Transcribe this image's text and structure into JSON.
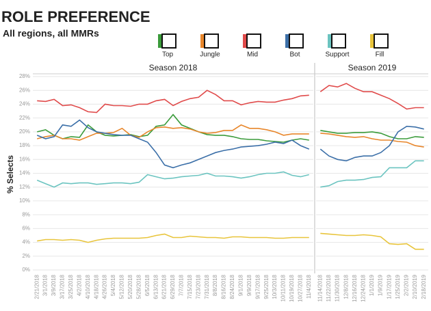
{
  "title": "ROLE PREFERENCE",
  "subtitle": "All regions, all MMRs",
  "ylabel": "% Selects",
  "chart_data": [
    {
      "type": "line",
      "title": "Season 2018",
      "categories": [
        "2/21/2018",
        "3/1/2018",
        "3/9/2018",
        "3/17/2018",
        "3/25/2018",
        "4/2/2018",
        "4/10/2018",
        "4/18/2018",
        "4/26/2018",
        "5/4/2018",
        "5/12/2018",
        "5/20/2018",
        "5/28/2018",
        "6/5/2018",
        "6/13/2018",
        "6/21/2018",
        "6/29/2018",
        "7/7/2018",
        "7/15/2018",
        "7/23/2018",
        "7/31/2018",
        "8/8/2018",
        "8/16/2018",
        "8/24/2018",
        "9/1/2018",
        "9/9/2018",
        "9/17/2018",
        "9/25/2018",
        "10/3/2018",
        "10/11/2018",
        "10/19/2018",
        "10/27/2018",
        "11/4/2018"
      ],
      "ylim": [
        0,
        28
      ],
      "yticks": [
        {
          "value": 0,
          "label": "0%"
        },
        {
          "value": 2,
          "label": "2%"
        },
        {
          "value": 4,
          "label": "4%"
        },
        {
          "value": 6,
          "label": "6%"
        },
        {
          "value": 8,
          "label": "8%"
        },
        {
          "value": 10,
          "label": "10%"
        },
        {
          "value": 12,
          "label": "12%"
        },
        {
          "value": 14,
          "label": "14%"
        },
        {
          "value": 16,
          "label": "16%"
        },
        {
          "value": 18,
          "label": "18%"
        },
        {
          "value": 20,
          "label": "20%"
        },
        {
          "value": 22,
          "label": "22%"
        },
        {
          "value": 24,
          "label": "24%"
        },
        {
          "value": 26,
          "label": "26%"
        },
        {
          "value": 28,
          "label": "28%"
        }
      ],
      "grid": true,
      "series": [
        {
          "name": "Top",
          "color": "#3a9b3a",
          "values": [
            20,
            20.3,
            19.5,
            19,
            19.3,
            19.2,
            21,
            20,
            19.5,
            19.4,
            19.5,
            19.6,
            19.3,
            19.5,
            20.8,
            21,
            22.5,
            21,
            20.5,
            20,
            19.6,
            19.5,
            19.5,
            19.3,
            19,
            18.9,
            18.9,
            18.7,
            18.6,
            18.5,
            18.8,
            19,
            18.8
          ]
        },
        {
          "name": "Jungle",
          "color": "#e8862a",
          "values": [
            19,
            19.3,
            19.5,
            19,
            19,
            18.8,
            19.3,
            19.8,
            19.8,
            19.9,
            20.5,
            19.5,
            19.2,
            20,
            20.6,
            20.7,
            20.5,
            20.6,
            20.4,
            20,
            19.8,
            19.9,
            20.2,
            20.2,
            21,
            20.5,
            20.5,
            20.3,
            20,
            19.5,
            19.7,
            19.7,
            19.7
          ]
        },
        {
          "name": "Mid",
          "color": "#e04a4a",
          "values": [
            24.5,
            24.4,
            24.7,
            23.8,
            23.9,
            23.5,
            22.9,
            22.8,
            24,
            23.8,
            23.8,
            23.7,
            24,
            24,
            24.5,
            24.7,
            23.8,
            24.4,
            24.8,
            25,
            26,
            25.4,
            24.5,
            24.5,
            23.9,
            24.2,
            24.4,
            24.3,
            24.3,
            24.6,
            24.8,
            25.2,
            25.3
          ]
        },
        {
          "name": "Bot",
          "color": "#3b6fa8",
          "values": [
            19.5,
            19,
            19.3,
            21,
            20.8,
            21.7,
            20.6,
            20,
            19.8,
            19.6,
            19.5,
            19.5,
            19,
            18.5,
            17,
            15.2,
            14.8,
            15.2,
            15.5,
            16,
            16.5,
            17,
            17.3,
            17.5,
            17.8,
            17.9,
            18,
            18.2,
            18.5,
            18.3,
            18.8,
            18,
            17.5
          ]
        },
        {
          "name": "Support",
          "color": "#6bc4c0",
          "values": [
            13,
            12.5,
            12,
            12.6,
            12.5,
            12.6,
            12.6,
            12.4,
            12.5,
            12.6,
            12.6,
            12.5,
            12.7,
            13.8,
            13.5,
            13.2,
            13.3,
            13.5,
            13.6,
            13.7,
            14,
            13.6,
            13.6,
            13.5,
            13.3,
            13.5,
            13.8,
            14,
            14,
            14.2,
            13.7,
            13.5,
            13.8
          ]
        },
        {
          "name": "Fill",
          "color": "#e8c43a",
          "values": [
            4.2,
            4.4,
            4.4,
            4.3,
            4.4,
            4.3,
            4,
            4.3,
            4.5,
            4.6,
            4.6,
            4.6,
            4.6,
            4.7,
            5,
            5.2,
            4.7,
            4.7,
            4.9,
            4.8,
            4.7,
            4.7,
            4.6,
            4.8,
            4.8,
            4.7,
            4.7,
            4.7,
            4.6,
            4.6,
            4.7,
            4.7,
            4.7
          ]
        }
      ]
    },
    {
      "type": "line",
      "title": "Season 2019",
      "categories": [
        "11/14/2018",
        "11/22/2018",
        "11/30/2018",
        "12/8/2018",
        "12/16/2018",
        "12/24/2018",
        "1/1/2019",
        "1/9/2019",
        "1/17/2019",
        "1/25/2019",
        "2/2/2019",
        "2/10/2019",
        "2/18/2019"
      ],
      "ylim": [
        0,
        28
      ],
      "series": [
        {
          "name": "Top",
          "color": "#3a9b3a",
          "values": [
            20.2,
            20,
            19.8,
            19.8,
            19.9,
            19.9,
            20,
            19.8,
            19.3,
            19,
            19,
            19.3,
            19.2
          ]
        },
        {
          "name": "Jungle",
          "color": "#e8862a",
          "values": [
            19.8,
            19.7,
            19.5,
            19.3,
            19.2,
            19.3,
            19,
            18.8,
            18.8,
            18.6,
            18.5,
            18,
            17.8
          ]
        },
        {
          "name": "Mid",
          "color": "#e04a4a",
          "values": [
            25.8,
            26.7,
            26.5,
            27,
            26.3,
            25.8,
            25.8,
            25.3,
            24.8,
            24.1,
            23.3,
            23.5,
            23.5
          ]
        },
        {
          "name": "Bot",
          "color": "#3b6fa8",
          "values": [
            17.5,
            16.5,
            16,
            15.8,
            16.3,
            16.5,
            16.5,
            17,
            18,
            20,
            20.8,
            20.7,
            20.4
          ]
        },
        {
          "name": "Support",
          "color": "#6bc4c0",
          "values": [
            12,
            12.2,
            12.8,
            13,
            13,
            13.1,
            13.4,
            13.5,
            14.8,
            14.8,
            14.8,
            15.8,
            15.8
          ]
        },
        {
          "name": "Fill",
          "color": "#e8c43a",
          "values": [
            5.3,
            5.2,
            5.1,
            5,
            5,
            5.1,
            5,
            4.8,
            3.8,
            3.7,
            3.8,
            3,
            3
          ]
        }
      ]
    }
  ]
}
